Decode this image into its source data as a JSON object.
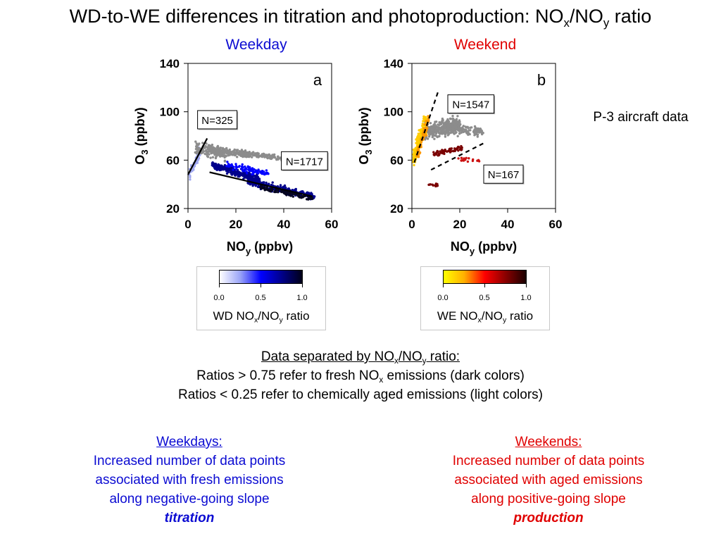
{
  "slide": {
    "title_main": "WD-to-WE differences in titration and photoproduction: NO",
    "title_sub1": "x",
    "title_mid": "/NO",
    "title_sub2": "y",
    "title_end": " ratio",
    "weekday_label": "Weekday",
    "weekend_label": "Weekend",
    "side_note": "P-3 aircraft data",
    "notes": {
      "heading_a": "Data separated by NO",
      "heading_sub1": "x",
      "heading_b": "/NO",
      "heading_sub2": "y",
      "heading_c": " ratio:",
      "line1_a": "Ratios > 0.75 refer to fresh NO",
      "line1_sub": "x",
      "line1_b": " emissions (dark colors)",
      "line2": "Ratios < 0.25 refer to chemically aged emissions (light colors)"
    },
    "weekdays": {
      "heading": "Weekdays:",
      "line1": "Increased number of data points",
      "line2": "associated with fresh emissions",
      "line3": "along negative-going slope",
      "emphasis": "titration"
    },
    "weekends": {
      "heading": "Weekends:",
      "line1": "Increased number of data points",
      "line2": "associated with aged emissions",
      "line3": "along positive-going slope",
      "emphasis": "production"
    }
  },
  "colorbars": [
    {
      "id": "wd",
      "title_a": "WD NO",
      "title_sub1": "x",
      "title_b": "/NO",
      "title_sub2": "y",
      "title_c": " ratio",
      "ticks": [
        "0.0",
        "0.5",
        "1.0"
      ],
      "colors": [
        "#ffffff",
        "#9aa4f8",
        "#0000ff",
        "#00008c",
        "#000018"
      ]
    },
    {
      "id": "we",
      "title_a": "WE NO",
      "title_sub1": "x",
      "title_b": "/NO",
      "title_sub2": "y",
      "title_c": " ratio",
      "ticks": [
        "0.0",
        "0.5",
        "1.0"
      ],
      "colors": [
        "#ffff00",
        "#ffb000",
        "#ff0000",
        "#8b0000",
        "#1a0000"
      ]
    }
  ],
  "chart_data": [
    {
      "type": "scatter",
      "panel_label": "a",
      "xlabel_main": "NO",
      "xlabel_sub": "y",
      "xlabel_end": " (ppbv)",
      "ylabel_main": "O",
      "ylabel_sub": "3",
      "ylabel_end": " (ppbv)",
      "xlim": [
        0,
        60
      ],
      "ylim": [
        20,
        140
      ],
      "xticks": [
        0,
        20,
        40,
        60
      ],
      "yticks": [
        20,
        60,
        100,
        140
      ],
      "grid": false,
      "series": [
        {
          "color": "#a0a8f0",
          "clusters": [
            {
              "x": [
                0.5,
                5
              ],
              "y": [
                45,
                70
              ],
              "n": 60,
              "trend": 4
            }
          ]
        },
        {
          "color": "#8c8c8c",
          "clusters": [
            {
              "x": [
                3,
                16
              ],
              "y": [
                55,
                80
              ],
              "n": 150,
              "trend": -0.5
            },
            {
              "x": [
                9,
                26
              ],
              "y": [
                60,
                73
              ],
              "n": 150,
              "trend": -0.3
            },
            {
              "x": [
                20,
                38
              ],
              "y": [
                58,
                70
              ],
              "n": 90,
              "trend": -0.25
            },
            {
              "x": [
                22,
                45
              ],
              "y": [
                58,
                68
              ],
              "n": 90,
              "trend": -0.2
            }
          ]
        },
        {
          "color": "#00008c",
          "clusters": [
            {
              "x": [
                10,
                30
              ],
              "y": [
                42,
                58
              ],
              "n": 260,
              "trend": -0.6
            },
            {
              "x": [
                25,
                53
              ],
              "y": [
                28,
                44
              ],
              "n": 240,
              "trend": -0.45
            }
          ]
        },
        {
          "color": "#0000ff",
          "clusters": [
            {
              "x": [
                16,
                34
              ],
              "y": [
                44,
                60
              ],
              "n": 80,
              "trend": -0.4
            }
          ]
        },
        {
          "color": "#050520",
          "clusters": [
            {
              "x": [
                30,
                52
              ],
              "y": [
                28,
                38
              ],
              "n": 90,
              "trend": -0.4
            }
          ]
        }
      ],
      "fit_lines": [
        {
          "style": "solid",
          "x": [
            0,
            8
          ],
          "y": [
            48,
            78
          ]
        },
        {
          "style": "solid",
          "x": [
            9,
            52
          ],
          "y": [
            50,
            30
          ]
        }
      ],
      "annotations": [
        {
          "text": "N=325",
          "x": 4,
          "y": 101
        },
        {
          "text": "N=1717",
          "x": 39,
          "y": 67
        }
      ]
    },
    {
      "type": "scatter",
      "panel_label": "b",
      "xlabel_main": "NO",
      "xlabel_sub": "y",
      "xlabel_end": " (ppbv)",
      "ylabel_main": "O",
      "ylabel_sub": "3",
      "ylabel_end": " (ppbv)",
      "xlim": [
        0,
        60
      ],
      "ylim": [
        20,
        140
      ],
      "xticks": [
        0,
        20,
        40,
        60
      ],
      "yticks": [
        20,
        60,
        100,
        140
      ],
      "grid": false,
      "series": [
        {
          "color": "#8c8c8c",
          "clusters": [
            {
              "x": [
                5,
                20
              ],
              "y": [
                68,
                105
              ],
              "n": 320,
              "trend": 0.4
            },
            {
              "x": [
                15,
                30
              ],
              "y": [
                75,
                95
              ],
              "n": 120,
              "trend": -0.2
            }
          ]
        },
        {
          "color": "#ffcc00",
          "clusters": [
            {
              "x": [
                0.5,
                6
              ],
              "y": [
                55,
                100
              ],
              "n": 160,
              "trend": 6
            }
          ]
        },
        {
          "color": "#ff9900",
          "clusters": [
            {
              "x": [
                2,
                7
              ],
              "y": [
                60,
                95
              ],
              "n": 70,
              "trend": 6
            }
          ]
        },
        {
          "color": "#7a0000",
          "clusters": [
            {
              "x": [
                9,
                21
              ],
              "y": [
                62,
                73
              ],
              "n": 70,
              "trend": 0.4
            },
            {
              "x": [
                7,
                11
              ],
              "y": [
                37,
                42
              ],
              "n": 14,
              "trend": 0
            }
          ]
        },
        {
          "color": "#cc1111",
          "clusters": [
            {
              "x": [
                18,
                29
              ],
              "y": [
                56,
                65
              ],
              "n": 16,
              "trend": 0
            }
          ]
        }
      ],
      "fit_lines": [
        {
          "style": "dashed",
          "x": [
            1,
            11
          ],
          "y": [
            58,
            117
          ]
        },
        {
          "style": "dashed",
          "x": [
            8,
            30
          ],
          "y": [
            52,
            74
          ]
        }
      ],
      "annotations": [
        {
          "text": "N=1547",
          "x": 15,
          "y": 114
        },
        {
          "text": "N=167",
          "x": 30,
          "y": 56
        }
      ]
    }
  ]
}
